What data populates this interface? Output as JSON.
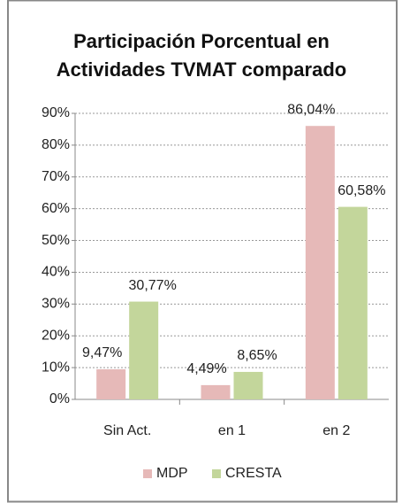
{
  "chart_data": {
    "type": "bar",
    "title": [
      "Participación Porcentual en",
      "Actividades TVMAT comparado"
    ],
    "categories": [
      "Sin Act.",
      "en 1",
      "en 2"
    ],
    "series": [
      {
        "name": "MDP",
        "color": "#e6b9b8",
        "values": [
          9.47,
          4.49,
          86.04
        ],
        "value_labels": [
          "9,47%",
          "4,49%",
          "86,04%"
        ]
      },
      {
        "name": "CRESTA",
        "color": "#c3d69b",
        "values": [
          30.77,
          8.65,
          60.58
        ],
        "value_labels": [
          "30,77%",
          "8,65%",
          "60,58%"
        ]
      }
    ],
    "ylim": [
      0,
      90
    ],
    "yticks": [
      {
        "value": 0,
        "label": "0%"
      },
      {
        "value": 10,
        "label": "10%"
      },
      {
        "value": 20,
        "label": "20%"
      },
      {
        "value": 30,
        "label": "30%"
      },
      {
        "value": 40,
        "label": "40%"
      },
      {
        "value": 50,
        "label": "50%"
      },
      {
        "value": 60,
        "label": "60%"
      },
      {
        "value": 70,
        "label": "70%"
      },
      {
        "value": 80,
        "label": "80%"
      },
      {
        "value": 90,
        "label": "90%"
      }
    ],
    "grid": true,
    "legend": "bottom"
  }
}
